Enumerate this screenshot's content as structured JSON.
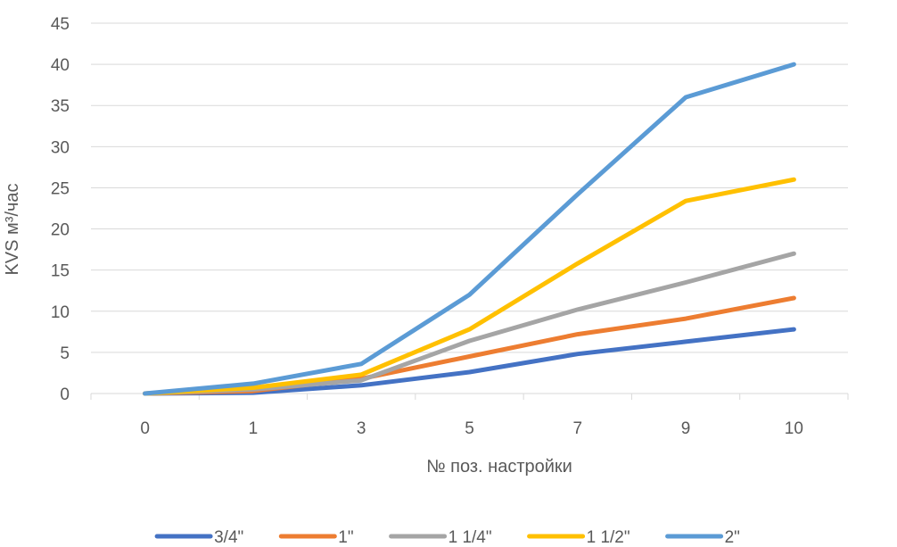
{
  "chart_data": {
    "type": "line",
    "categories": [
      "0",
      "1",
      "3",
      "5",
      "7",
      "9",
      "10"
    ],
    "xlabel": "№ поз. настройки",
    "ylabel": "KVS м³/час",
    "ylim": [
      0,
      45
    ],
    "yticks": [
      0,
      5,
      10,
      15,
      20,
      25,
      30,
      35,
      40,
      45
    ],
    "grid": true,
    "legend_position": "bottom",
    "series": [
      {
        "name": "3/4\"",
        "color": "#4472C4",
        "values": [
          0,
          0.1,
          1.0,
          2.6,
          4.8,
          6.3,
          7.8
        ]
      },
      {
        "name": "1\"",
        "color": "#ED7D31",
        "values": [
          0,
          0.3,
          1.8,
          4.5,
          7.2,
          9.1,
          11.6
        ]
      },
      {
        "name": "1 1/4\"",
        "color": "#A5A5A5",
        "values": [
          0,
          0.5,
          1.6,
          6.4,
          10.2,
          13.5,
          17.0
        ]
      },
      {
        "name": "1 1/2\"",
        "color": "#FFC000",
        "values": [
          0,
          0.7,
          2.3,
          7.8,
          15.8,
          23.4,
          26.0
        ]
      },
      {
        "name": "2\"",
        "color": "#5B9BD5",
        "values": [
          0,
          1.2,
          3.6,
          12.0,
          24.2,
          36.0,
          40.0
        ]
      }
    ]
  }
}
